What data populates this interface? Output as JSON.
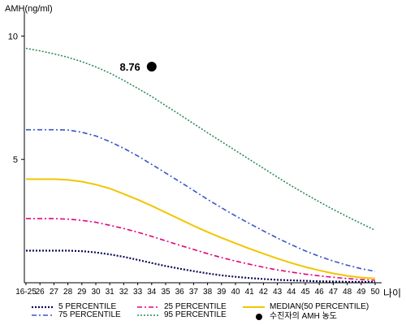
{
  "chart_data": {
    "type": "line",
    "ylabel": "AMH(ng/ml)",
    "xlabel": "나이",
    "ylim": [
      0,
      11
    ],
    "yticks": [
      5,
      10
    ],
    "x_ticks": [
      "16-25",
      "26",
      "27",
      "28",
      "29",
      "30",
      "31",
      "32",
      "33",
      "34",
      "35",
      "36",
      "37",
      "38",
      "39",
      "40",
      "41",
      "42",
      "43",
      "44",
      "45",
      "46",
      "47",
      "48",
      "49",
      "50"
    ],
    "grid": false,
    "series": [
      {
        "name": "5 PERCENTILE",
        "color": "#0a0a5a",
        "dash": "2,2",
        "width": 2.2,
        "values": [
          1.3,
          1.3,
          1.3,
          1.3,
          1.28,
          1.23,
          1.15,
          1.05,
          0.93,
          0.8,
          0.68,
          0.57,
          0.47,
          0.38,
          0.3,
          0.24,
          0.19,
          0.15,
          0.12,
          0.1,
          0.08,
          0.06,
          0.05,
          0.04,
          0.035,
          0.03
        ]
      },
      {
        "name": "25 PERCENTILE",
        "color": "#e6007e",
        "dash": "6,3,2,3",
        "width": 1.6,
        "values": [
          2.6,
          2.6,
          2.6,
          2.58,
          2.53,
          2.45,
          2.33,
          2.2,
          2.05,
          1.88,
          1.7,
          1.52,
          1.35,
          1.18,
          1.02,
          0.88,
          0.75,
          0.63,
          0.52,
          0.43,
          0.35,
          0.28,
          0.22,
          0.17,
          0.13,
          0.1
        ]
      },
      {
        "name": "MEDIAN(50 PERCENTILE)",
        "color": "#f2c500",
        "dash": "",
        "width": 2,
        "values": [
          4.2,
          4.2,
          4.2,
          4.17,
          4.1,
          3.98,
          3.82,
          3.6,
          3.37,
          3.12,
          2.85,
          2.58,
          2.31,
          2.06,
          1.82,
          1.6,
          1.38,
          1.18,
          0.98,
          0.8,
          0.64,
          0.5,
          0.38,
          0.28,
          0.21,
          0.17
        ]
      },
      {
        "name": "75 PERCENTILE",
        "color": "#3a56c8",
        "dash": "6,3,2,3",
        "width": 1.6,
        "values": [
          6.2,
          6.2,
          6.2,
          6.19,
          6.1,
          5.95,
          5.72,
          5.45,
          5.14,
          4.8,
          4.45,
          4.1,
          3.74,
          3.38,
          3.04,
          2.71,
          2.4,
          2.1,
          1.81,
          1.54,
          1.29,
          1.07,
          0.88,
          0.71,
          0.57,
          0.46
        ]
      },
      {
        "name": "95 PERCENTILE",
        "color": "#2e8b57",
        "dash": "2,2",
        "width": 1.6,
        "values": [
          9.5,
          9.4,
          9.28,
          9.14,
          8.96,
          8.75,
          8.5,
          8.2,
          7.88,
          7.55,
          7.18,
          6.82,
          6.45,
          6.08,
          5.72,
          5.36,
          5.0,
          4.64,
          4.28,
          3.93,
          3.6,
          3.28,
          2.97,
          2.68,
          2.4,
          2.13
        ]
      }
    ],
    "highlight": {
      "name": "수진자의 AMH 농도",
      "x": "34",
      "y": 8.76,
      "label": "8.76",
      "color": "#000000"
    }
  },
  "legend": {
    "items": [
      {
        "label": "5 PERCENTILE",
        "series": 0
      },
      {
        "label": "25 PERCENTILE",
        "series": 1
      },
      {
        "label": "MEDIAN(50 PERCENTILE)",
        "series": 2
      },
      {
        "label": "75 PERCENTILE",
        "series": 3
      },
      {
        "label": "95 PERCENTILE",
        "series": 4
      },
      {
        "label": "수진자의 AMH 농도",
        "marker": "dot"
      }
    ]
  }
}
